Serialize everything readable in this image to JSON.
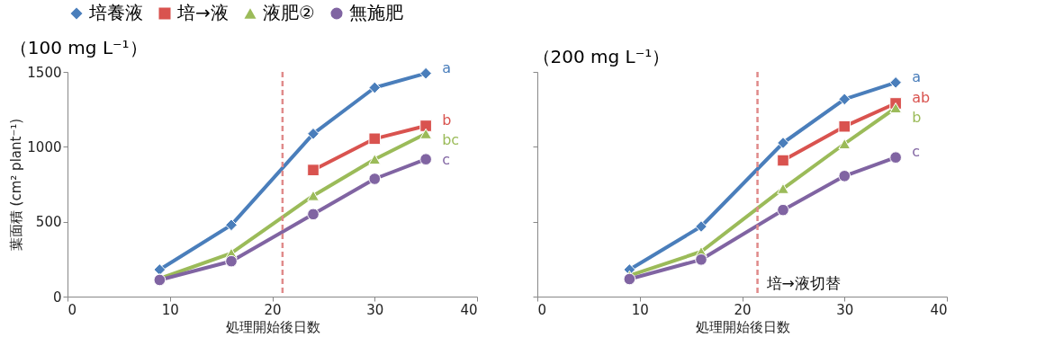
{
  "chart_data": [
    {
      "type": "line",
      "title": "（100 mg L⁻¹）",
      "xlabel": "処理開始後日数",
      "ylabel": "葉面積 (cm² plant⁻¹)",
      "x": [
        9,
        16,
        24,
        30,
        35
      ],
      "xlim": [
        0,
        40
      ],
      "xticks": [
        0,
        10,
        20,
        30,
        40
      ],
      "ylim": [
        0,
        1500
      ],
      "yticks": [
        0,
        500,
        1000,
        1500
      ],
      "grid": false,
      "legend": "top",
      "line_style": "solid",
      "series": [
        {
          "name": "培養液",
          "color": "#4a7ebb",
          "marker": "diamond",
          "values": [
            180,
            478,
            1087,
            1395,
            1490
          ]
        },
        {
          "name": "培→液",
          "color": "#d9534f",
          "marker": "square",
          "values": [
            null,
            null,
            845,
            1054,
            1140
          ]
        },
        {
          "name": "液肥②",
          "color": "#9bbb59",
          "marker": "triangle",
          "values": [
            120,
            290,
            674,
            917,
            1087
          ]
        },
        {
          "name": "無施肥",
          "color": "#8064a2",
          "marker": "circle",
          "values": [
            111,
            236,
            550,
            786,
            917
          ]
        }
      ],
      "ref_lines": [
        {
          "axis": "x",
          "value": 21,
          "color": "#e08a8a",
          "line_style": "dashed"
        }
      ],
      "annotations": [
        "a",
        "b",
        "bc",
        "c"
      ]
    },
    {
      "type": "line",
      "title": "（200 mg L⁻¹）",
      "xlabel": "処理開始後日数",
      "x": [
        9,
        16,
        24,
        30,
        35
      ],
      "xlim": [
        0,
        40
      ],
      "xticks": [
        0,
        10,
        20,
        30,
        40
      ],
      "ylim": [
        0,
        1500
      ],
      "yticks": [
        0,
        500,
        1000,
        1500
      ],
      "grid": false,
      "tick_labels": "x",
      "line_style": "solid",
      "series": [
        {
          "name": "培養液",
          "color": "#4a7ebb",
          "marker": "diamond",
          "values": [
            180,
            468,
            1026,
            1318,
            1429
          ]
        },
        {
          "name": "培→液",
          "color": "#d9534f",
          "marker": "square",
          "values": [
            null,
            null,
            909,
            1136,
            1290
          ]
        },
        {
          "name": "液肥②",
          "color": "#9bbb59",
          "marker": "triangle",
          "values": [
            140,
            300,
            721,
            1020,
            1260
          ]
        },
        {
          "name": "無施肥",
          "color": "#8064a2",
          "marker": "circle",
          "values": [
            117,
            247,
            578,
            805,
            929
          ]
        }
      ],
      "ref_lines": [
        {
          "axis": "x",
          "value": 21.5,
          "color": "#e08a8a",
          "line_style": "dashed",
          "label": "培→液切替"
        }
      ],
      "annotations": [
        "a",
        "ab",
        "b",
        "c"
      ]
    }
  ]
}
